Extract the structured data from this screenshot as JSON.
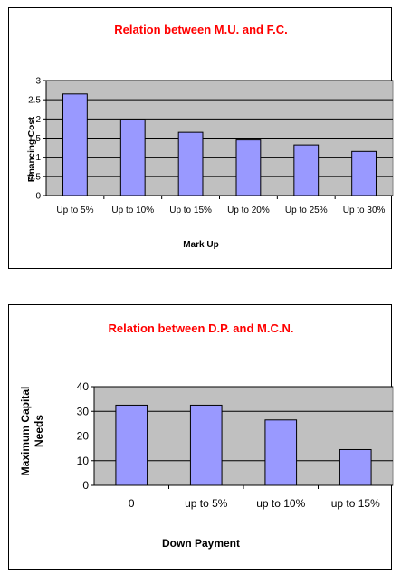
{
  "chart_data": [
    {
      "type": "bar",
      "title": "Relation between M.U. and  F.C.",
      "xlabel": "Mark Up",
      "ylabel": "Financing Cost",
      "categories": [
        "Up to 5%",
        "Up to 10%",
        "Up to 15%",
        "Up to 20%",
        "Up to 25%",
        "Up to 30%"
      ],
      "values": [
        2.65,
        1.98,
        1.65,
        1.45,
        1.32,
        1.15
      ],
      "ylim": [
        0,
        3
      ],
      "yticks": [
        "0",
        "0.5",
        "1",
        "1.5",
        "2",
        "2.5",
        "3"
      ],
      "grid": true,
      "legend": "none",
      "bar_color": "#9999ff",
      "plot_bg": "#c0c0c0",
      "title_color": "#ff0000"
    },
    {
      "type": "bar",
      "title": "Relation between D.P. and M.C.N.",
      "xlabel": "Down Payment",
      "ylabel": "Maximum Capital Needs",
      "categories": [
        "0",
        "up to 5%",
        "up to 10%",
        "up to 15%"
      ],
      "values": [
        32.5,
        32.5,
        26.5,
        14.5
      ],
      "ylim": [
        0,
        40
      ],
      "yticks": [
        "0",
        "10",
        "20",
        "30",
        "40"
      ],
      "grid": true,
      "legend": "none",
      "bar_color": "#9999ff",
      "plot_bg": "#c0c0c0",
      "title_color": "#ff0000"
    }
  ]
}
